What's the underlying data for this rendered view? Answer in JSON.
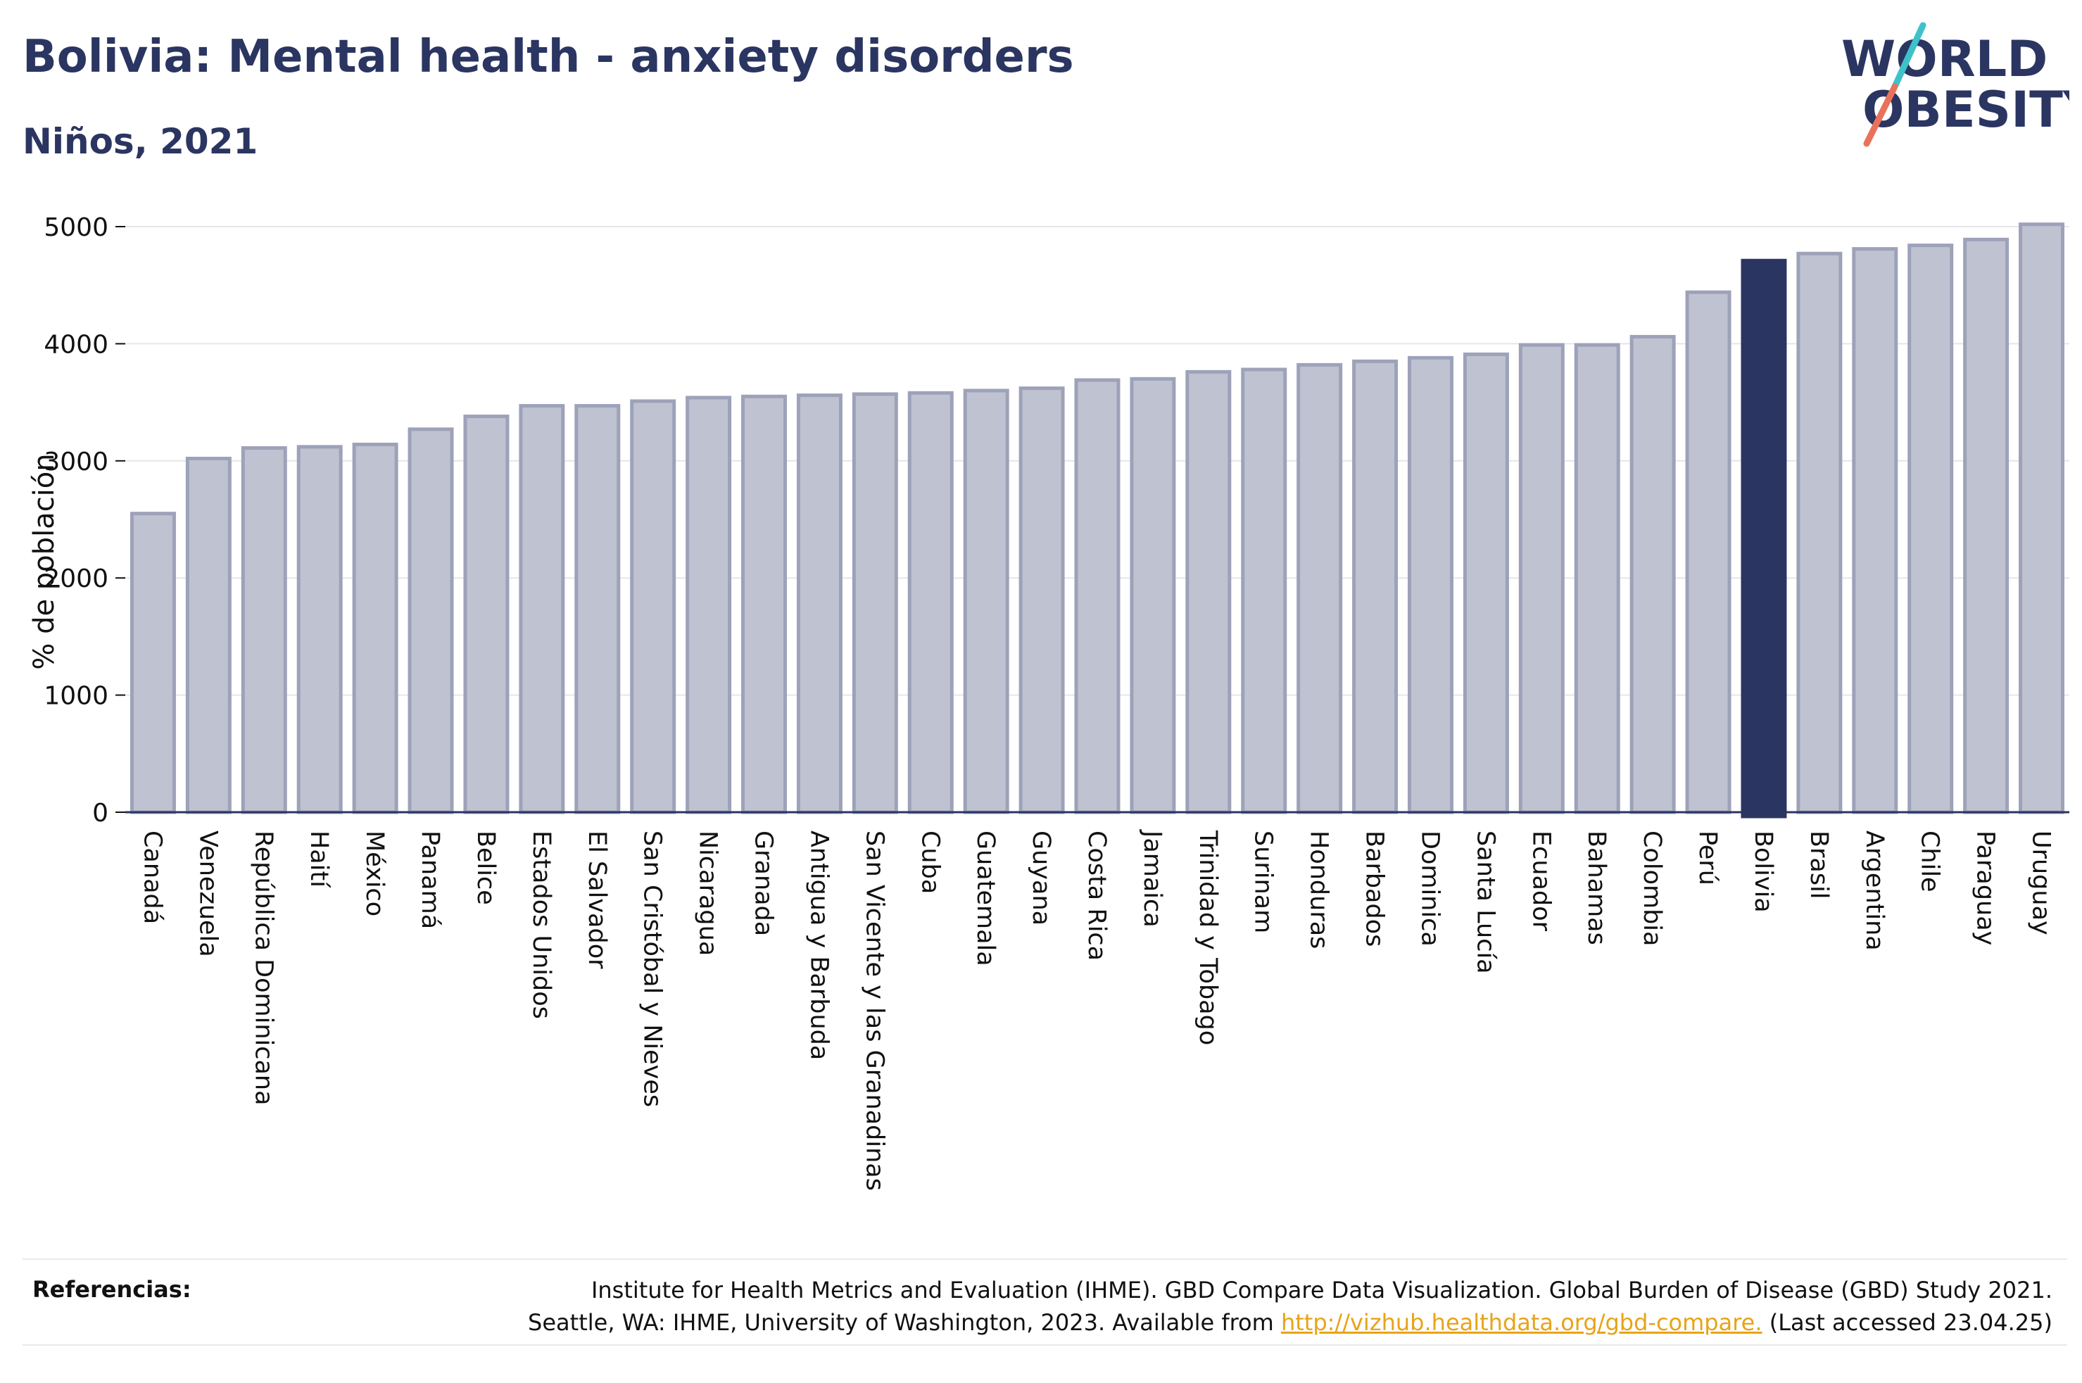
{
  "header": {
    "title": "Bolivia: Mental health - anxiety disorders",
    "subtitle": "Niños, 2021"
  },
  "logo": {
    "line1": "WORLD",
    "line2": "OBESITY",
    "colors": {
      "text": "#2b3561",
      "slash_top": "#3fc1c9",
      "slash_bottom": "#e8735a"
    }
  },
  "colors": {
    "bar_fill": "#bfc2d0",
    "bar_stroke": "#9da2b9",
    "highlight": "#2b3561",
    "grid": "#e6e6ea",
    "axis": "#2b3561"
  },
  "chart_data": {
    "type": "bar",
    "title": "Bolivia: Mental health - anxiety disorders",
    "subtitle": "Niños, 2021",
    "xlabel": "",
    "ylabel": "% de población",
    "ylim": [
      0,
      5000
    ],
    "yticks": [
      0,
      1000,
      2000,
      3000,
      4000,
      5000
    ],
    "grid": true,
    "highlight": "Bolivia",
    "categories": [
      "Canadá",
      "Venezuela",
      "República Dominicana",
      "Haití",
      "México",
      "Panamá",
      "Belice",
      "Estados Unidos",
      "El Salvador",
      "San Cristóbal y Nieves",
      "Nicaragua",
      "Granada",
      "Antigua y Barbuda",
      "San Vicente y las Granadinas",
      "Cuba",
      "Guatemala",
      "Guyana",
      "Costa Rica",
      "Jamaica",
      "Trinidad y Tobago",
      "Surinam",
      "Honduras",
      "Barbados",
      "Dominica",
      "Santa Lucía",
      "Ecuador",
      "Bahamas",
      "Colombia",
      "Perú",
      "Bolivia",
      "Brasil",
      "Argentina",
      "Chile",
      "Paraguay",
      "Uruguay"
    ],
    "values": [
      2550,
      3020,
      3110,
      3120,
      3140,
      3270,
      3380,
      3470,
      3470,
      3510,
      3540,
      3550,
      3560,
      3570,
      3580,
      3600,
      3620,
      3690,
      3700,
      3760,
      3780,
      3820,
      3850,
      3880,
      3910,
      3990,
      3990,
      4060,
      4440,
      4710,
      4770,
      4810,
      4840,
      4890,
      5020
    ]
  },
  "footer": {
    "label": "Referencias:",
    "line1": "Institute for Health Metrics and Evaluation (IHME). GBD Compare Data Visualization. Global Burden of Disease (GBD) Study 2021.",
    "line2_pre": "Seattle, WA: IHME, University of Washington, 2023. Available from ",
    "link": "http://vizhub.healthdata.org/gbd-compare.",
    "line2_post": " (Last accessed 23.04.25)"
  }
}
